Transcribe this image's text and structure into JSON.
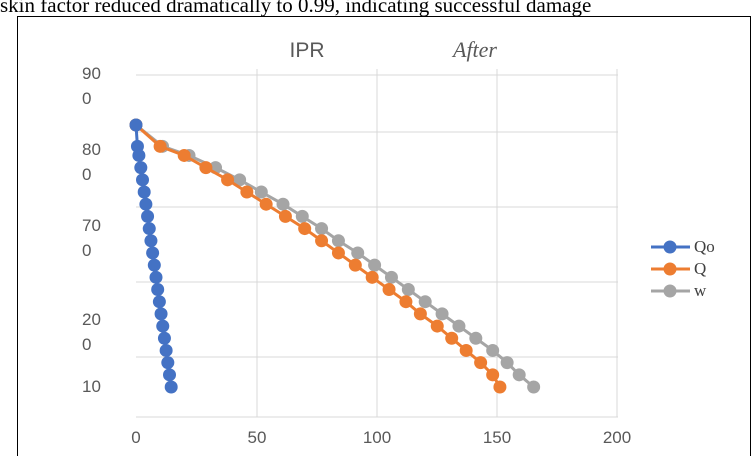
{
  "caption": "skin factor reduced dramatically to 0.99, indicating successful damage",
  "chart_data": {
    "type": "line",
    "title": "IPR",
    "subtitle": "After",
    "x_ticks": [
      "0",
      "50",
      "100",
      "150",
      "200"
    ],
    "x_ticks_extra": "0",
    "y_ticks": [
      {
        "l1": "90",
        "l2": "0"
      },
      {
        "l1": "80",
        "l2": "0"
      },
      {
        "l1": "70",
        "l2": "0"
      },
      {
        "l1": "",
        "l2": ""
      },
      {
        "l1": "20",
        "l2": "0"
      },
      {
        "l1": "10",
        "l2": ""
      }
    ],
    "xlim": [
      0,
      200
    ],
    "y_levels": [
      900,
      800,
      700,
      600,
      200,
      100
    ],
    "grid": true,
    "legend_position": "right",
    "series": [
      {
        "name": "Qo",
        "color": "#4472C4",
        "x": [
          0,
          0.6,
          1.2,
          2.0,
          2.7,
          3.4,
          4.1,
          4.8,
          5.5,
          6.2,
          6.9,
          7.6,
          8.3,
          9.0,
          9.7,
          10.4,
          11.1,
          11.8,
          12.5,
          13.2,
          13.9,
          14.6
        ],
        "y": [
          880,
          845,
          830,
          810,
          790,
          770,
          750,
          730,
          710,
          690,
          670,
          650,
          630,
          610,
          590,
          570,
          550,
          530,
          510,
          490,
          470,
          450
        ]
      },
      {
        "name": "Q",
        "color": "#ED7D31",
        "x": [
          0,
          10,
          20,
          29,
          38,
          46,
          54,
          62,
          70,
          77,
          84,
          91,
          98,
          105,
          112,
          118,
          125,
          131,
          137,
          143,
          148,
          151
        ],
        "y": [
          880,
          845,
          830,
          810,
          790,
          770,
          750,
          730,
          710,
          690,
          670,
          650,
          630,
          610,
          590,
          570,
          550,
          530,
          510,
          490,
          470,
          450
        ]
      },
      {
        "name": "w",
        "color": "#A5A5A5",
        "x": [
          0,
          11,
          22,
          33,
          43,
          52,
          61,
          69,
          77,
          84,
          92,
          99,
          106,
          113,
          120,
          127,
          134,
          141,
          148,
          154,
          159,
          165
        ],
        "y": [
          880,
          845,
          830,
          810,
          790,
          770,
          750,
          730,
          710,
          690,
          670,
          650,
          630,
          610,
          590,
          570,
          550,
          530,
          510,
          490,
          470,
          450
        ]
      }
    ]
  }
}
